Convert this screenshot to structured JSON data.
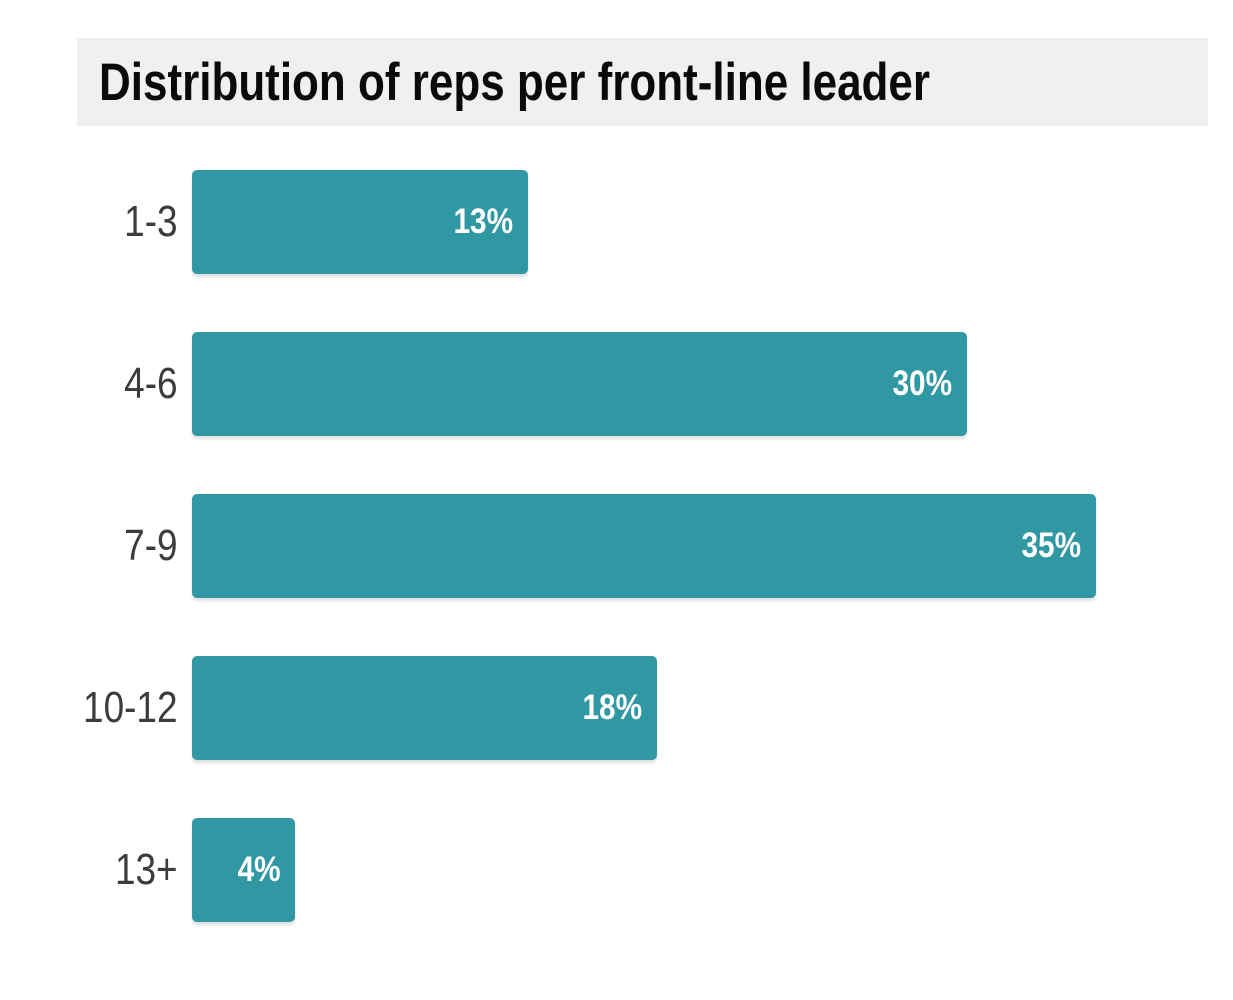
{
  "title": "Distribution of reps per front-line leader",
  "colors": {
    "bar": "#2f98a3",
    "title_band_background": "#f0f0f0",
    "title_text": "#0a0a0a",
    "category_label_text": "#3c3c3c",
    "value_label_text": "#ffffff",
    "page_background": "#ffffff"
  },
  "chart_data": {
    "type": "bar",
    "orientation": "horizontal",
    "title": "Distribution of reps per front-line leader",
    "categories": [
      "1-3",
      "4-6",
      "7-9",
      "10-12",
      "13+"
    ],
    "values": [
      13,
      30,
      35,
      18,
      4
    ],
    "value_labels": [
      "13%",
      "30%",
      "35%",
      "18%",
      "4%"
    ],
    "xlabel": "",
    "ylabel": "",
    "xlim": [
      0,
      40.3
    ],
    "grid": false,
    "legend": false,
    "value_label_position": "inside-end",
    "bar_color": "#2f98a3"
  }
}
